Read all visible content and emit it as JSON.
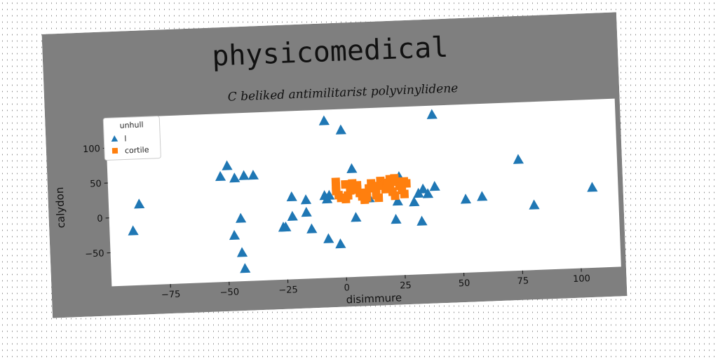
{
  "chart_data": {
    "type": "scatter",
    "title": "physicomedical",
    "subtitle": "C beliked antimilitarist polyvinylidene",
    "xlabel": "disimmure",
    "ylabel": "calydon",
    "xlim": [
      -100,
      117
    ],
    "ylim": [
      -98,
      143
    ],
    "xticks": [
      -75,
      -50,
      -25,
      0,
      25,
      50,
      75,
      100
    ],
    "yticks": [
      -50,
      0,
      50,
      100
    ],
    "grid": false,
    "legend": {
      "title": "unhull",
      "placement": "top-left"
    },
    "series": [
      {
        "name": "l",
        "marker": "triangle",
        "color": "#1f77b4",
        "points": [
          [
            -90,
            -20
          ],
          [
            -87,
            18
          ],
          [
            -52,
            53
          ],
          [
            -49,
            68
          ],
          [
            -46,
            50
          ],
          [
            -42,
            53
          ],
          [
            -38,
            53
          ],
          [
            -44,
            -8
          ],
          [
            -47,
            -32
          ],
          [
            -44,
            -57
          ],
          [
            -43,
            -80
          ],
          [
            -26,
            -23
          ],
          [
            -25,
            -23
          ],
          [
            -22,
            20
          ],
          [
            -22,
            -8
          ],
          [
            -16,
            15
          ],
          [
            -16,
            -3
          ],
          [
            -14,
            -27
          ],
          [
            -8,
            20
          ],
          [
            -7,
            15
          ],
          [
            -6,
            20
          ],
          [
            -7,
            -42
          ],
          [
            -2,
            -50
          ],
          [
            -7,
            127
          ],
          [
            0,
            113
          ],
          [
            4,
            57
          ],
          [
            5,
            -13
          ],
          [
            11,
            14
          ],
          [
            24,
            41
          ],
          [
            24,
            43
          ],
          [
            23,
            8
          ],
          [
            22,
            -18
          ],
          [
            30,
            6
          ],
          [
            33,
            -22
          ],
          [
            32,
            18
          ],
          [
            34,
            24
          ],
          [
            36,
            17
          ],
          [
            39,
            27
          ],
          [
            39,
            130
          ],
          [
            52,
            7
          ],
          [
            59,
            10
          ],
          [
            75,
            61
          ],
          [
            81,
            -5
          ],
          [
            106,
            17
          ]
        ]
      },
      {
        "name": "cortile",
        "marker": "square",
        "color": "#ff7f0e",
        "points": [
          [
            -3,
            39
          ],
          [
            -3,
            32
          ],
          [
            -3,
            26
          ],
          [
            -2,
            20
          ],
          [
            -1,
            16
          ],
          [
            1,
            14
          ],
          [
            2,
            19
          ],
          [
            3,
            26
          ],
          [
            4,
            32
          ],
          [
            6,
            33
          ],
          [
            6,
            27
          ],
          [
            7,
            22
          ],
          [
            8,
            17
          ],
          [
            9,
            12
          ],
          [
            10,
            22
          ],
          [
            11,
            28
          ],
          [
            12,
            35
          ],
          [
            13,
            30
          ],
          [
            14,
            24
          ],
          [
            14,
            18
          ],
          [
            15,
            14
          ],
          [
            16,
            38
          ],
          [
            17,
            32
          ],
          [
            18,
            26
          ],
          [
            19,
            35
          ],
          [
            20,
            40
          ],
          [
            20,
            30
          ],
          [
            21,
            22
          ],
          [
            22,
            16
          ],
          [
            23,
            36
          ],
          [
            24,
            30
          ],
          [
            25,
            24
          ],
          [
            26,
            18
          ],
          [
            27,
            33
          ],
          [
            4,
            36
          ],
          [
            1,
            35
          ],
          [
            10,
            15
          ],
          [
            15,
            31
          ],
          [
            22,
            41
          ],
          [
            26,
            36
          ]
        ]
      }
    ]
  }
}
